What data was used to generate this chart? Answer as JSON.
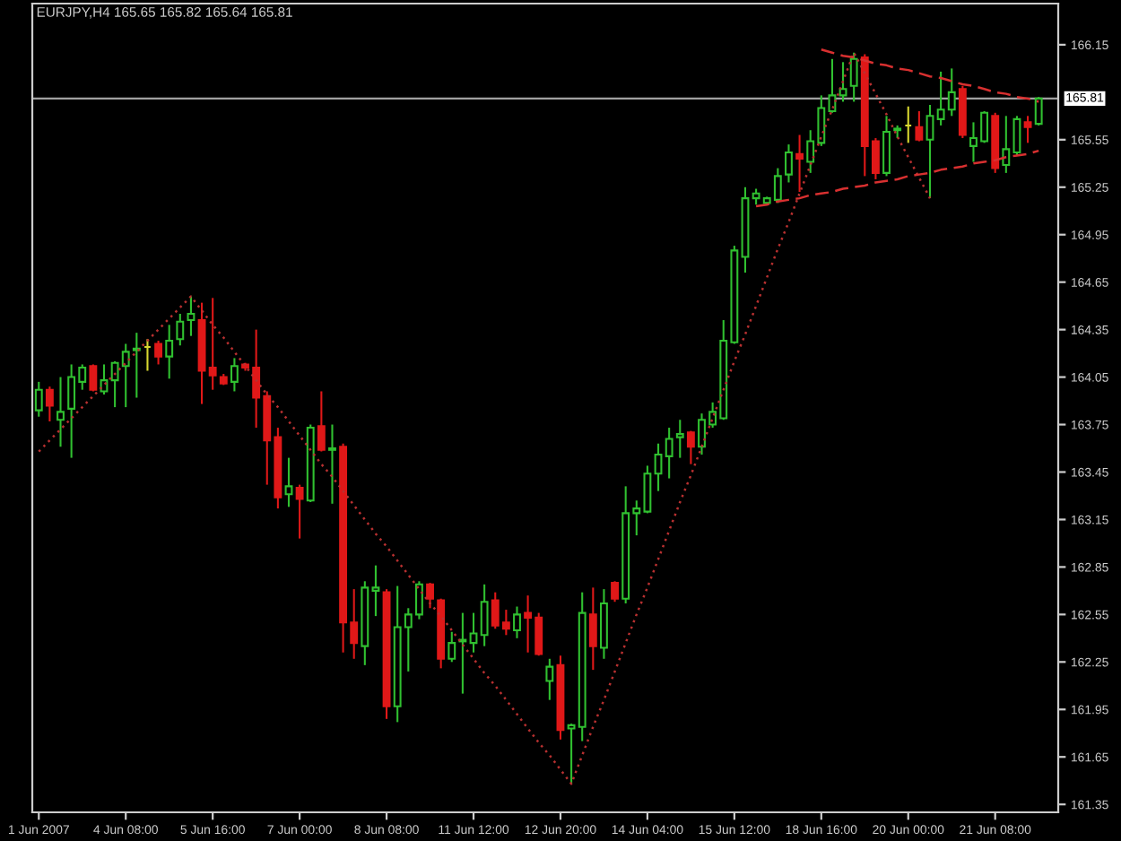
{
  "chart_data": {
    "type": "candlestick",
    "title": "EURJPY,H4 165.65 165.82 165.64 165.81",
    "categories": [
      "1 Jun 2007",
      null,
      null,
      null,
      null,
      null,
      null,
      null,
      "4 Jun 08:00",
      null,
      null,
      null,
      null,
      null,
      null,
      null,
      "5 Jun 16:00",
      null,
      null,
      null,
      null,
      null,
      null,
      null,
      "7 Jun 00:00",
      null,
      null,
      null,
      null,
      null,
      null,
      null,
      "8 Jun 08:00",
      null,
      null,
      null,
      null,
      null,
      null,
      null,
      "11 Jun 12:00",
      null,
      null,
      null,
      null,
      null,
      null,
      null,
      "12 Jun 20:00",
      null,
      null,
      null,
      null,
      null,
      null,
      null,
      "14 Jun 04:00",
      null,
      null,
      null,
      null,
      null,
      null,
      null,
      "15 Jun 12:00",
      null,
      null,
      null,
      null,
      null,
      null,
      null,
      "18 Jun 16:00",
      null,
      null,
      null,
      null,
      null,
      null,
      null,
      "20 Jun 00:00",
      null,
      null,
      null,
      null,
      null,
      null,
      null,
      "21 Jun 08:00",
      null,
      null,
      null,
      null
    ],
    "ohlc": [
      [
        163.84,
        164.02,
        163.8,
        163.97
      ],
      [
        163.97,
        163.99,
        163.77,
        163.87
      ],
      [
        163.78,
        164.05,
        163.61,
        163.83
      ],
      [
        163.85,
        164.13,
        163.54,
        164.05
      ],
      [
        164.02,
        164.13,
        163.97,
        164.11
      ],
      [
        164.12,
        164.13,
        163.96,
        163.97
      ],
      [
        163.96,
        164.13,
        163.94,
        164.03
      ],
      [
        164.03,
        164.15,
        163.86,
        164.14
      ],
      [
        164.12,
        164.26,
        163.86,
        164.21
      ],
      [
        164.22,
        164.33,
        163.92,
        164.23
      ],
      [
        164.24,
        164.29,
        164.09,
        164.24
      ],
      [
        164.26,
        164.28,
        164.13,
        164.18
      ],
      [
        164.18,
        164.38,
        164.04,
        164.28
      ],
      [
        164.29,
        164.45,
        164.25,
        164.4
      ],
      [
        164.41,
        164.56,
        164.31,
        164.45
      ],
      [
        164.41,
        164.52,
        163.88,
        164.09
      ],
      [
        164.11,
        164.55,
        163.97,
        164.06
      ],
      [
        164.05,
        164.07,
        164.0,
        164.01
      ],
      [
        164.02,
        164.17,
        163.96,
        164.12
      ],
      [
        164.13,
        164.14,
        164.09,
        164.11
      ],
      [
        164.11,
        164.35,
        163.73,
        163.92
      ],
      [
        163.93,
        163.96,
        163.37,
        163.65
      ],
      [
        163.67,
        163.73,
        163.22,
        163.29
      ],
      [
        163.31,
        163.54,
        163.23,
        163.36
      ],
      [
        163.35,
        163.37,
        163.03,
        163.28
      ],
      [
        163.27,
        163.75,
        163.26,
        163.73
      ],
      [
        163.74,
        163.96,
        163.58,
        163.59
      ],
      [
        163.59,
        163.75,
        163.25,
        163.6
      ],
      [
        163.61,
        163.63,
        162.31,
        162.5
      ],
      [
        162.5,
        162.71,
        162.27,
        162.37
      ],
      [
        162.35,
        162.76,
        162.23,
        162.72
      ],
      [
        162.7,
        162.86,
        162.54,
        162.72
      ],
      [
        162.69,
        162.71,
        161.89,
        161.97
      ],
      [
        161.97,
        162.73,
        161.87,
        162.47
      ],
      [
        162.47,
        162.59,
        162.19,
        162.55
      ],
      [
        162.55,
        162.76,
        162.52,
        162.74
      ],
      [
        162.74,
        162.75,
        162.59,
        162.65
      ],
      [
        162.64,
        162.65,
        162.21,
        162.27
      ],
      [
        162.27,
        162.44,
        162.25,
        162.37
      ],
      [
        162.38,
        162.56,
        162.05,
        162.39
      ],
      [
        162.37,
        162.56,
        162.31,
        162.43
      ],
      [
        162.42,
        162.74,
        162.35,
        162.63
      ],
      [
        162.64,
        162.69,
        162.46,
        162.48
      ],
      [
        162.5,
        162.58,
        162.42,
        162.46
      ],
      [
        162.45,
        162.6,
        162.4,
        162.55
      ],
      [
        162.56,
        162.67,
        162.31,
        162.53
      ],
      [
        162.53,
        162.56,
        162.29,
        162.3
      ],
      [
        162.13,
        162.27,
        162.01,
        162.22
      ],
      [
        162.23,
        162.29,
        161.76,
        161.82
      ],
      [
        161.83,
        161.86,
        161.48,
        161.85
      ],
      [
        161.84,
        162.69,
        161.75,
        162.56
      ],
      [
        162.55,
        162.72,
        162.2,
        162.35
      ],
      [
        162.34,
        162.71,
        162.27,
        162.62
      ],
      [
        162.75,
        162.76,
        162.63,
        162.65
      ],
      [
        162.65,
        163.36,
        162.62,
        163.19
      ],
      [
        163.19,
        163.27,
        163.05,
        163.22
      ],
      [
        163.2,
        163.49,
        163.19,
        163.44
      ],
      [
        163.44,
        163.63,
        163.33,
        163.56
      ],
      [
        163.55,
        163.73,
        163.41,
        163.66
      ],
      [
        163.67,
        163.78,
        163.54,
        163.69
      ],
      [
        163.7,
        163.71,
        163.5,
        163.61
      ],
      [
        163.61,
        163.82,
        163.56,
        163.78
      ],
      [
        163.75,
        163.89,
        163.73,
        163.83
      ],
      [
        163.79,
        164.41,
        163.78,
        164.28
      ],
      [
        164.27,
        164.88,
        164.26,
        164.85
      ],
      [
        164.81,
        165.25,
        164.71,
        165.18
      ],
      [
        165.18,
        165.24,
        165.14,
        165.21
      ],
      [
        165.15,
        165.19,
        165.14,
        165.18
      ],
      [
        165.17,
        165.37,
        165.15,
        165.32
      ],
      [
        165.33,
        165.52,
        165.28,
        165.47
      ],
      [
        165.46,
        165.58,
        165.22,
        165.43
      ],
      [
        165.41,
        165.61,
        165.34,
        165.54
      ],
      [
        165.53,
        165.83,
        165.51,
        165.75
      ],
      [
        165.73,
        166.06,
        165.72,
        165.83
      ],
      [
        165.83,
        166.04,
        165.79,
        165.87
      ],
      [
        165.89,
        166.1,
        165.79,
        166.06
      ],
      [
        166.07,
        166.09,
        165.32,
        165.51
      ],
      [
        165.54,
        165.56,
        165.3,
        165.34
      ],
      [
        165.34,
        165.7,
        165.32,
        165.6
      ],
      [
        165.61,
        165.64,
        165.56,
        165.62
      ],
      [
        165.64,
        165.76,
        165.53,
        165.64
      ],
      [
        165.63,
        165.73,
        165.54,
        165.55
      ],
      [
        165.55,
        165.77,
        165.18,
        165.7
      ],
      [
        165.68,
        165.98,
        165.64,
        165.74
      ],
      [
        165.74,
        166.0,
        165.7,
        165.85
      ],
      [
        165.87,
        165.89,
        165.56,
        165.58
      ],
      [
        165.51,
        165.66,
        165.41,
        165.56
      ],
      [
        165.54,
        165.73,
        165.53,
        165.72
      ],
      [
        165.7,
        165.72,
        165.34,
        165.37
      ],
      [
        165.39,
        165.7,
        165.34,
        165.49
      ],
      [
        165.47,
        165.7,
        165.45,
        165.68
      ],
      [
        165.66,
        165.7,
        165.53,
        165.63
      ],
      [
        165.65,
        165.82,
        165.64,
        165.81
      ]
    ],
    "colors": [
      "#30c030",
      "#e01818",
      "#30c030",
      "#30c030",
      "#30c030",
      "#e01818",
      "#30c030",
      "#30c030",
      "#30c030",
      "#30c030",
      "#d8d830",
      "#e01818",
      "#30c030",
      "#30c030",
      "#30c030",
      "#e01818",
      "#e01818",
      "#e01818",
      "#30c030",
      "#e01818",
      "#e01818",
      "#e01818",
      "#e01818",
      "#30c030",
      "#e01818",
      "#30c030",
      "#e01818",
      "#30c030",
      "#e01818",
      "#e01818",
      "#30c030",
      "#30c030",
      "#e01818",
      "#30c030",
      "#30c030",
      "#30c030",
      "#e01818",
      "#e01818",
      "#30c030",
      "#30c030",
      "#30c030",
      "#30c030",
      "#e01818",
      "#e01818",
      "#30c030",
      "#e01818",
      "#e01818",
      "#30c030",
      "#e01818",
      "#30c030",
      "#30c030",
      "#e01818",
      "#30c030",
      "#e01818",
      "#30c030",
      "#30c030",
      "#30c030",
      "#30c030",
      "#30c030",
      "#30c030",
      "#e01818",
      "#30c030",
      "#30c030",
      "#30c030",
      "#30c030",
      "#30c030",
      "#30c030",
      "#30c030",
      "#30c030",
      "#30c030",
      "#e01818",
      "#30c030",
      "#30c030",
      "#30c030",
      "#30c030",
      "#30c030",
      "#e01818",
      "#e01818",
      "#30c030",
      "#30c030",
      "#d8d830",
      "#e01818",
      "#30c030",
      "#30c030",
      "#30c030",
      "#e01818",
      "#30c030",
      "#30c030",
      "#e01818",
      "#30c030",
      "#30c030",
      "#e01818",
      "#30c030"
    ],
    "series": [
      {
        "type": "line",
        "color": "#b83030",
        "line_style": "dotted",
        "values": [
          163.58,
          163.65,
          163.72,
          163.79,
          163.86,
          163.93,
          164.0,
          164.07,
          164.14,
          164.21,
          164.28,
          164.35,
          164.42,
          164.49,
          164.56,
          164.47,
          164.38,
          164.3,
          164.21,
          164.12,
          164.03,
          163.94,
          163.86,
          163.77,
          163.68,
          163.59,
          163.5,
          163.42,
          163.33,
          163.24,
          163.15,
          163.06,
          162.98,
          162.89,
          162.8,
          162.71,
          162.62,
          162.54,
          162.45,
          162.36,
          162.27,
          162.18,
          162.1,
          162.01,
          161.92,
          161.83,
          161.74,
          161.66,
          161.57,
          161.48,
          161.66,
          161.84,
          162.01,
          162.19,
          162.37,
          162.55,
          162.72,
          162.9,
          163.08,
          163.26,
          163.43,
          163.61,
          163.79,
          163.97,
          164.15,
          164.32,
          164.5,
          164.68,
          164.86,
          165.03,
          165.21,
          165.39,
          165.57,
          165.74,
          165.92,
          166.1,
          165.97,
          165.84,
          165.71,
          165.57,
          165.44,
          165.31,
          165.18,
          null,
          null,
          null,
          null,
          null,
          null,
          null,
          null,
          null,
          null
        ]
      },
      {
        "type": "line",
        "color": "#d83030",
        "line_style": "dashed",
        "values": [
          null,
          null,
          null,
          null,
          null,
          null,
          null,
          null,
          null,
          null,
          null,
          null,
          null,
          null,
          null,
          null,
          null,
          null,
          null,
          null,
          null,
          null,
          null,
          null,
          null,
          null,
          null,
          null,
          null,
          null,
          null,
          null,
          null,
          null,
          null,
          null,
          null,
          null,
          null,
          null,
          null,
          null,
          null,
          null,
          null,
          null,
          null,
          null,
          null,
          null,
          null,
          null,
          null,
          null,
          null,
          null,
          null,
          null,
          null,
          null,
          null,
          null,
          null,
          null,
          null,
          null,
          null,
          null,
          null,
          null,
          null,
          null,
          166.12,
          166.1,
          166.08,
          166.07,
          166.05,
          166.03,
          166.02,
          166.0,
          165.99,
          165.97,
          165.95,
          165.94,
          165.92,
          165.9,
          165.89,
          165.87,
          165.85,
          165.84,
          165.82,
          165.81,
          165.79
        ]
      },
      {
        "type": "line",
        "color": "#d83030",
        "line_style": "dashed",
        "values": [
          null,
          null,
          null,
          null,
          null,
          null,
          null,
          null,
          null,
          null,
          null,
          null,
          null,
          null,
          null,
          null,
          null,
          null,
          null,
          null,
          null,
          null,
          null,
          null,
          null,
          null,
          null,
          null,
          null,
          null,
          null,
          null,
          null,
          null,
          null,
          null,
          null,
          null,
          null,
          null,
          null,
          null,
          null,
          null,
          null,
          null,
          null,
          null,
          null,
          null,
          null,
          null,
          null,
          null,
          null,
          null,
          null,
          null,
          null,
          null,
          null,
          null,
          null,
          null,
          null,
          null,
          165.13,
          165.14,
          165.16,
          165.17,
          165.18,
          165.2,
          165.21,
          165.22,
          165.24,
          165.25,
          165.26,
          165.28,
          165.29,
          165.3,
          165.32,
          165.33,
          165.34,
          165.36,
          165.37,
          165.38,
          165.4,
          165.41,
          165.42,
          165.44,
          165.45,
          165.46,
          165.48
        ]
      }
    ],
    "ref_lines": [
      {
        "axis": "y",
        "value": 165.81,
        "label": "165.81",
        "color": "#a0a0a0"
      }
    ],
    "ylim": [
      161.3,
      166.41
    ],
    "yticks": [
      166.15,
      165.55,
      165.25,
      164.95,
      164.65,
      164.35,
      164.05,
      163.75,
      163.45,
      163.15,
      162.85,
      162.55,
      162.25,
      161.95,
      161.65,
      161.35
    ],
    "grid": false
  }
}
